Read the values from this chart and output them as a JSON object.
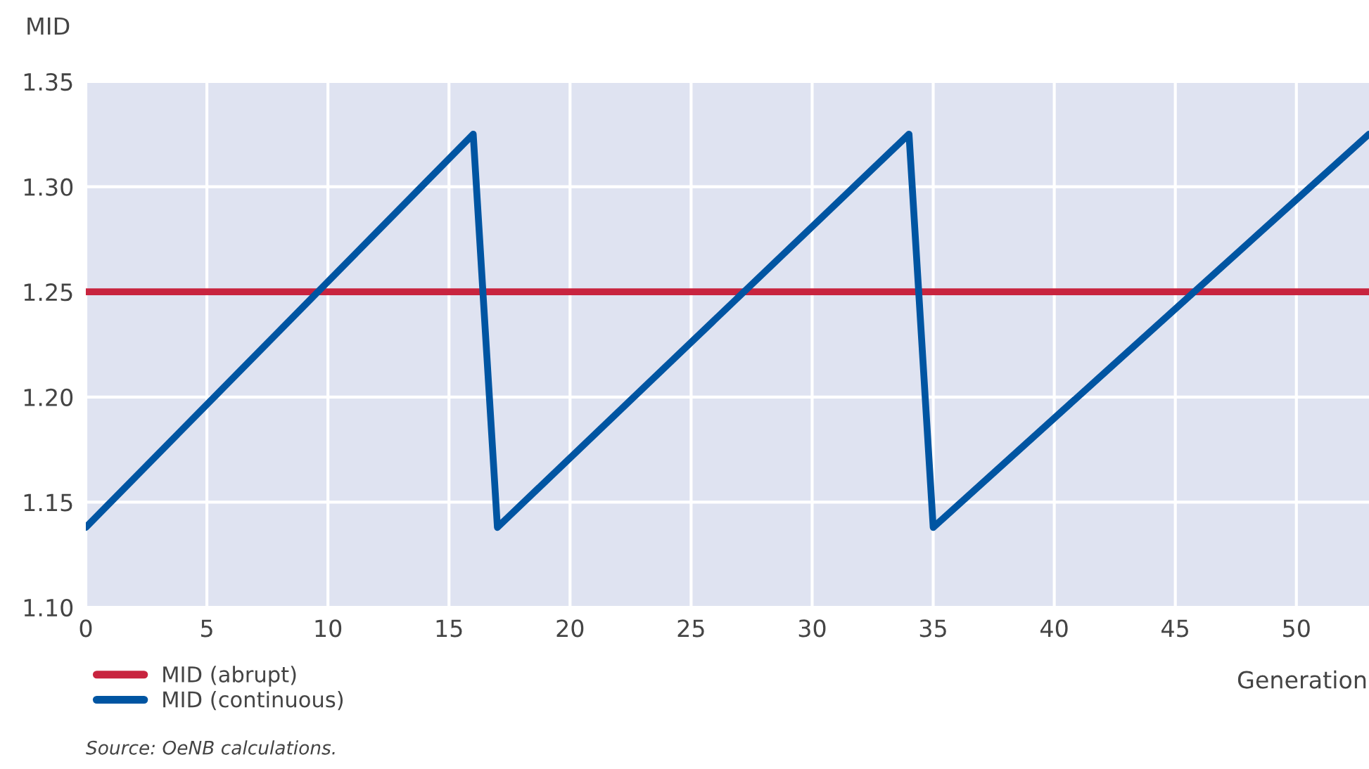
{
  "chart_data": {
    "type": "line",
    "ylabel": "MID",
    "xlabel": "Generation",
    "series": [
      {
        "name": "MID (abrupt)",
        "color": "#c8243f",
        "x": [
          0,
          53
        ],
        "values": [
          1.25,
          1.25
        ]
      },
      {
        "name": "MID (continuous)",
        "color": "#0055a2",
        "x": [
          0,
          16,
          17,
          34,
          35,
          53
        ],
        "values": [
          1.138,
          1.325,
          1.138,
          1.325,
          1.138,
          1.325
        ]
      }
    ],
    "xlim": [
      0,
      53
    ],
    "xticks": [
      0,
      5,
      10,
      15,
      20,
      25,
      30,
      35,
      40,
      45,
      50
    ],
    "ylim": [
      1.1,
      1.35
    ],
    "yticks": [
      {
        "value": 1.1,
        "label": "1.10"
      },
      {
        "value": 1.15,
        "label": "1.15"
      },
      {
        "value": 1.2,
        "label": "1.20"
      },
      {
        "value": 1.25,
        "label": "1.25"
      },
      {
        "value": 1.3,
        "label": "1.30"
      },
      {
        "value": 1.35,
        "label": "1.35"
      }
    ],
    "grid": true,
    "legend": "bottom left",
    "line_style": "solid",
    "annotations": [
      "Source: OeNB calculations."
    ]
  }
}
